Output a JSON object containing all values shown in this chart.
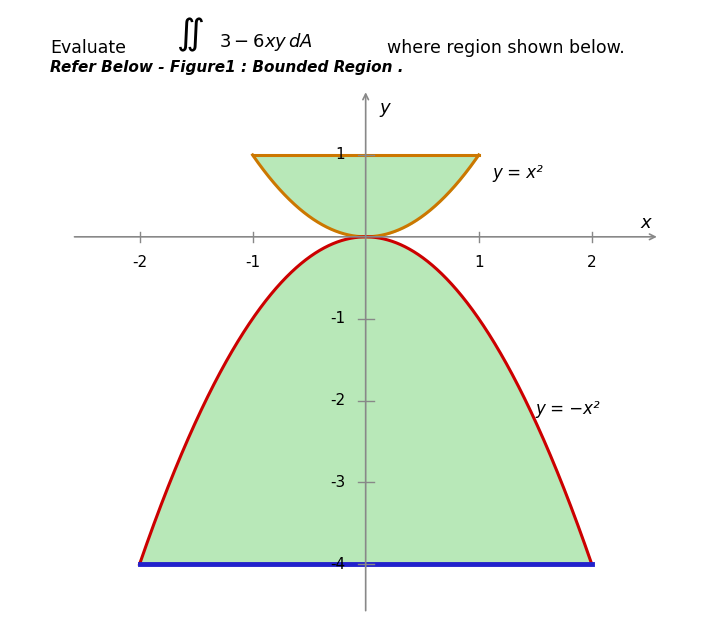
{
  "title_text": "Evaluate",
  "subtitle_text": "where region shown below.",
  "ref_text": "Refer Below - Figure1 : Bounded Region .",
  "x_label": "x",
  "y_label": "y",
  "xlim": [
    -2.6,
    2.6
  ],
  "ylim": [
    -4.6,
    1.8
  ],
  "x_ticks": [
    -2,
    -1,
    1,
    2
  ],
  "y_ticks": [
    -3,
    -2,
    -1,
    1
  ],
  "y_tick_labels": [
    "-3",
    "-2",
    "-1",
    "1"
  ],
  "fill_color": "#b8e8b8",
  "curve_upper_color": "#cc7700",
  "curve_lower_color": "#cc0000",
  "bottom_line_color": "#2222cc",
  "axis_color": "#888888",
  "label_x2": "y = x²",
  "label_neg_x2": "y = −x²",
  "background_color": "#ffffff",
  "lower_bottom_y": -4.0,
  "upper_top_y": 1.0
}
